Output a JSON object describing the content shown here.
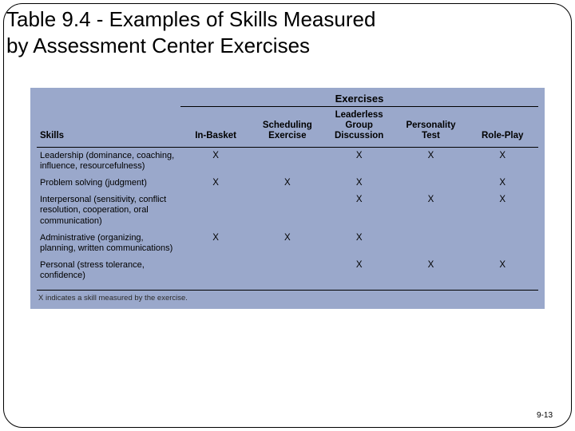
{
  "title_line1": "Table 9.4 - Examples of Skills Measured",
  "title_line2": "by Assessment Center Exercises",
  "page_number": "9-13",
  "table": {
    "super_header": "Exercises",
    "row_header_label": "Skills",
    "columns": [
      "In-Basket",
      "Scheduling Exercise",
      "Leaderless Group Discussion",
      "Personality Test",
      "Role-Play"
    ],
    "rows": [
      {
        "label": "Leadership (dominance, coaching, influence, resourcefulness)",
        "marks": [
          "X",
          "",
          "X",
          "X",
          "X"
        ]
      },
      {
        "label": "Problem solving (judgment)",
        "marks": [
          "X",
          "X",
          "X",
          "",
          "X"
        ]
      },
      {
        "label": "Interpersonal (sensitivity, conflict resolution, cooperation, oral communication)",
        "marks": [
          "",
          "",
          "X",
          "X",
          "X"
        ]
      },
      {
        "label": "Administrative (organizing, planning, written communications)",
        "marks": [
          "X",
          "X",
          "X",
          "",
          ""
        ]
      },
      {
        "label": "Personal (stress tolerance, confidence)",
        "marks": [
          "",
          "",
          "X",
          "X",
          "X"
        ]
      }
    ],
    "footnote": "X indicates a skill measured by the exercise.",
    "colors": {
      "table_bg": "#9aa8cb",
      "text": "#000000",
      "rule": "#000000"
    },
    "font_sizes": {
      "title": 26,
      "header": 13,
      "body": 11.5,
      "footnote": 9.5
    }
  }
}
